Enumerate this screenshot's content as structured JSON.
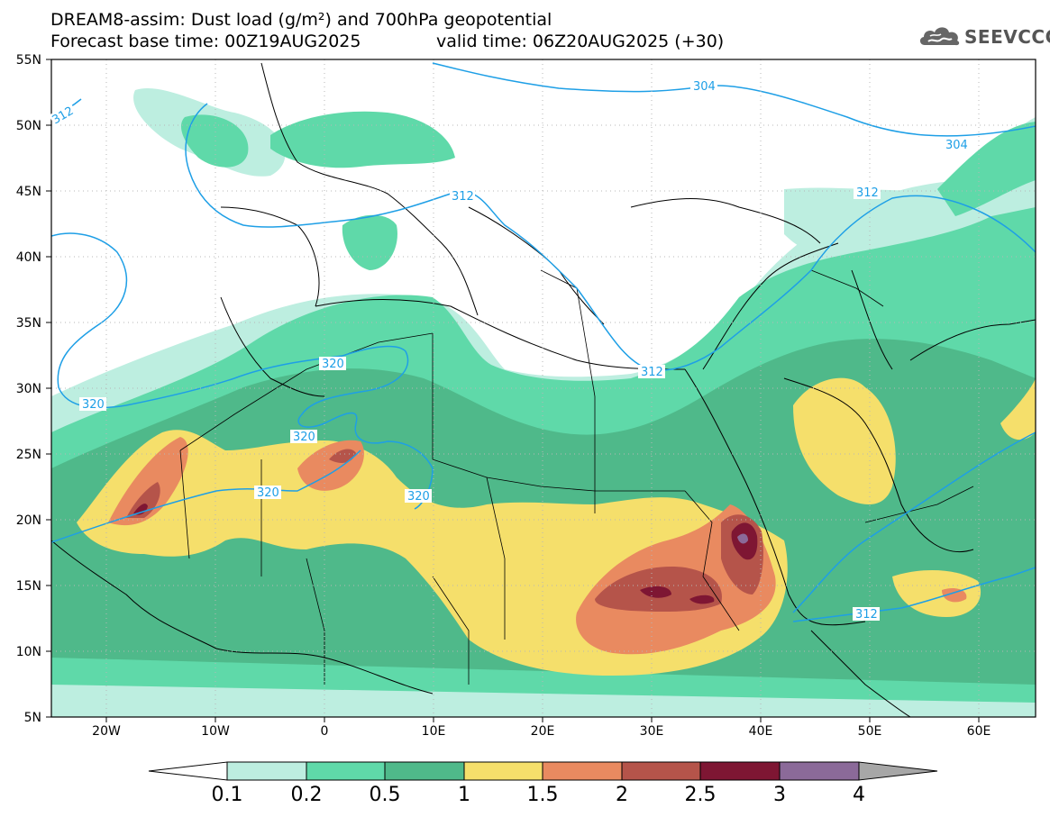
{
  "header": {
    "title_line1": "DREAM8-assim: Dust load (g/m²) and 700hPa geopotential",
    "base_time": "Forecast base time: 00Z19AUG2025",
    "valid_time": "valid time: 06Z20AUG2025 (+30)"
  },
  "logo": {
    "text": "SEEVCCC",
    "icon": "cloud-icon"
  },
  "map": {
    "lon_range": [
      -25,
      65
    ],
    "lat_range": [
      5,
      55
    ],
    "lon_labels": [
      "20W",
      "10W",
      "0",
      "10E",
      "20E",
      "30E",
      "40E",
      "50E",
      "60E"
    ],
    "lat_labels": [
      "55N",
      "50N",
      "45N",
      "40N",
      "35N",
      "30N",
      "25N",
      "20N",
      "15N",
      "10N",
      "5N"
    ],
    "contour_labels": [
      "304",
      "304",
      "312",
      "312",
      "312",
      "312",
      "312",
      "320",
      "320",
      "320",
      "320",
      "320"
    ]
  },
  "colorbar": {
    "levels": [
      "0.1",
      "0.2",
      "0.5",
      "1",
      "1.5",
      "2",
      "2.5",
      "3",
      "4"
    ],
    "colors": [
      "#bdeee0",
      "#5fd9a9",
      "#4fb98a",
      "#f5df6b",
      "#e98a60",
      "#b5544a",
      "#7e1633",
      "#8b6a99",
      "#a7a7a7"
    ]
  }
}
